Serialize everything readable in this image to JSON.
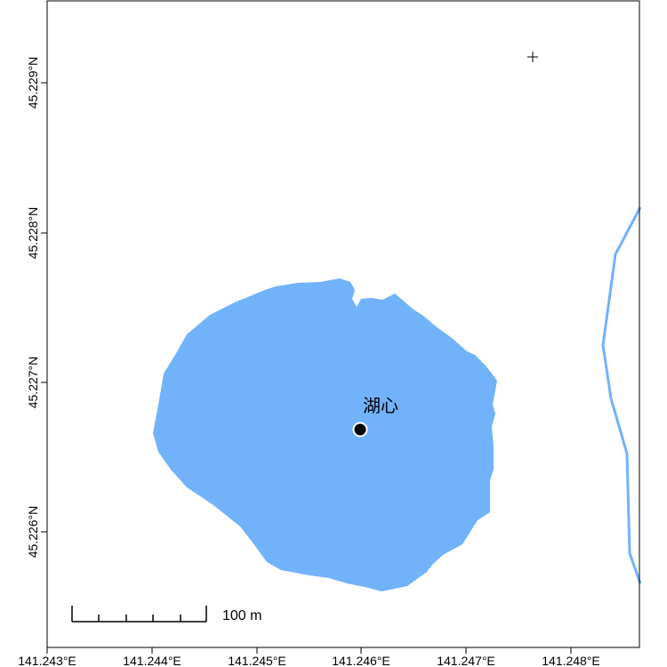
{
  "map": {
    "place_label": "湖心",
    "scale_bar_label": "100 m",
    "x_axis_ticks": [
      "141.243°E",
      "141.244°E",
      "141.245°E",
      "141.246°E",
      "141.247°E",
      "141.248°E"
    ],
    "y_axis_ticks": [
      "45.226°N",
      "45.227°N",
      "45.228°N",
      "45.229°N"
    ],
    "colors": {
      "water": "#72B2FB",
      "stream": "#72B2FB",
      "marker": "#000000",
      "frame": "#000000"
    },
    "icons": {
      "marker": "point-marker-icon",
      "crosshair": "plus-crosshair-icon"
    }
  }
}
